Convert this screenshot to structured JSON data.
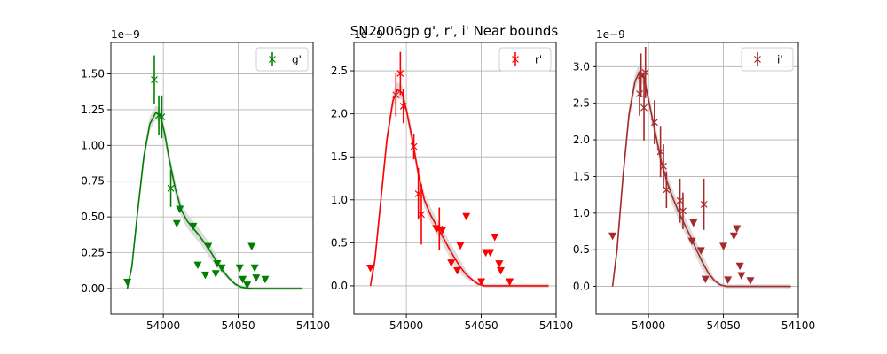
{
  "figure": {
    "title": "SN2006gp  g', r', i' Near bounds"
  },
  "chart_data": [
    {
      "type": "scatter",
      "title": "",
      "xlabel": "",
      "ylabel": "",
      "scale_label": "1e−9",
      "xlim": [
        53965,
        54100
      ],
      "ylim": [
        -0.18,
        1.72
      ],
      "xticks": [
        54000,
        54050,
        54100
      ],
      "yticks": [
        0.0,
        0.25,
        0.5,
        0.75,
        1.0,
        1.25,
        1.5
      ],
      "ytick_labels": [
        "0.00",
        "0.25",
        "0.50",
        "0.75",
        "1.00",
        "1.25",
        "1.50"
      ],
      "grid": true,
      "legend": {
        "position": "top-right",
        "label": "g'"
      },
      "color": "#008000",
      "detections": [
        {
          "x": 53994,
          "y": 1.46,
          "err": 0.17
        },
        {
          "x": 53997,
          "y": 1.21,
          "err": 0.14
        },
        {
          "x": 53999,
          "y": 1.2,
          "err": 0.15
        },
        {
          "x": 54005,
          "y": 0.7,
          "err": 0.13
        }
      ],
      "upper_limits": [
        {
          "x": 53976,
          "y": 0.04
        },
        {
          "x": 54009,
          "y": 0.45
        },
        {
          "x": 54011,
          "y": 0.55
        },
        {
          "x": 54020,
          "y": 0.43
        },
        {
          "x": 54023,
          "y": 0.16
        },
        {
          "x": 54028,
          "y": 0.09
        },
        {
          "x": 54030,
          "y": 0.29
        },
        {
          "x": 54035,
          "y": 0.1
        },
        {
          "x": 54036,
          "y": 0.17
        },
        {
          "x": 54039,
          "y": 0.14
        },
        {
          "x": 54051,
          "y": 0.14
        },
        {
          "x": 54053,
          "y": 0.06
        },
        {
          "x": 54056,
          "y": 0.02
        },
        {
          "x": 54059,
          "y": 0.29
        },
        {
          "x": 54061,
          "y": 0.14
        },
        {
          "x": 54062,
          "y": 0.07
        },
        {
          "x": 54068,
          "y": 0.06
        }
      ],
      "model": [
        [
          53976,
          0
        ],
        [
          53979,
          0.15
        ],
        [
          53983,
          0.55
        ],
        [
          53987,
          0.92
        ],
        [
          53991,
          1.15
        ],
        [
          53995,
          1.23
        ],
        [
          53998,
          1.21
        ],
        [
          54001,
          1.08
        ],
        [
          54004,
          0.9
        ],
        [
          54008,
          0.7
        ],
        [
          54012,
          0.55
        ],
        [
          54016,
          0.47
        ],
        [
          54020,
          0.42
        ],
        [
          54024,
          0.37
        ],
        [
          54028,
          0.31
        ],
        [
          54032,
          0.25
        ],
        [
          54036,
          0.18
        ],
        [
          54040,
          0.12
        ],
        [
          54044,
          0.07
        ],
        [
          54048,
          0.03
        ],
        [
          54052,
          0.01
        ],
        [
          54056,
          0.002
        ],
        [
          54060,
          0
        ],
        [
          54093,
          0
        ]
      ],
      "model_band": 0.05
    },
    {
      "type": "scatter",
      "title": "",
      "xlabel": "",
      "ylabel": "",
      "scale_label": "1e−9",
      "xlim": [
        53965,
        54100
      ],
      "ylim": [
        -0.33,
        2.83
      ],
      "xticks": [
        54000,
        54050,
        54100
      ],
      "yticks": [
        0.0,
        0.5,
        1.0,
        1.5,
        2.0,
        2.5
      ],
      "ytick_labels": [
        "0.0",
        "0.5",
        "1.0",
        "1.5",
        "2.0",
        "2.5"
      ],
      "grid": true,
      "legend": {
        "position": "top-right",
        "label": "r'"
      },
      "color": "#ff0000",
      "detections": [
        {
          "x": 53993,
          "y": 2.22,
          "err": 0.25
        },
        {
          "x": 53996,
          "y": 2.47,
          "err": 0.25
        },
        {
          "x": 53998,
          "y": 2.09,
          "err": 0.2
        },
        {
          "x": 54005,
          "y": 1.62,
          "err": 0.15
        },
        {
          "x": 54008,
          "y": 1.07,
          "err": 0.3
        },
        {
          "x": 54010,
          "y": 0.83,
          "err": 0.35
        },
        {
          "x": 54022,
          "y": 0.66,
          "err": 0.25
        }
      ],
      "upper_limits": [
        {
          "x": 53976,
          "y": 0.2
        },
        {
          "x": 54020,
          "y": 0.66
        },
        {
          "x": 54024,
          "y": 0.64
        },
        {
          "x": 54030,
          "y": 0.26
        },
        {
          "x": 54034,
          "y": 0.17
        },
        {
          "x": 54036,
          "y": 0.46
        },
        {
          "x": 54040,
          "y": 0.8
        },
        {
          "x": 54050,
          "y": 0.04
        },
        {
          "x": 54053,
          "y": 0.38
        },
        {
          "x": 54056,
          "y": 0.38
        },
        {
          "x": 54059,
          "y": 0.56
        },
        {
          "x": 54062,
          "y": 0.25
        },
        {
          "x": 54063,
          "y": 0.17
        },
        {
          "x": 54069,
          "y": 0.04
        }
      ],
      "model": [
        [
          53976,
          0
        ],
        [
          53979,
          0.3
        ],
        [
          53983,
          1.0
        ],
        [
          53987,
          1.7
        ],
        [
          53991,
          2.15
        ],
        [
          53994,
          2.28
        ],
        [
          53997,
          2.25
        ],
        [
          54000,
          2.05
        ],
        [
          54004,
          1.7
        ],
        [
          54008,
          1.3
        ],
        [
          54012,
          1.0
        ],
        [
          54016,
          0.83
        ],
        [
          54020,
          0.7
        ],
        [
          54024,
          0.58
        ],
        [
          54028,
          0.45
        ],
        [
          54032,
          0.33
        ],
        [
          54036,
          0.22
        ],
        [
          54040,
          0.13
        ],
        [
          54044,
          0.07
        ],
        [
          54048,
          0.02
        ],
        [
          54052,
          0
        ],
        [
          54095,
          0
        ]
      ],
      "model_band": 0.09
    },
    {
      "type": "scatter",
      "title": "",
      "xlabel": "",
      "ylabel": "",
      "scale_label": "1e−9",
      "xlim": [
        53965,
        54100
      ],
      "ylim": [
        -0.38,
        3.33
      ],
      "xticks": [
        54000,
        54050,
        54100
      ],
      "yticks": [
        0.0,
        0.5,
        1.0,
        1.5,
        2.0,
        2.5,
        3.0
      ],
      "ytick_labels": [
        "0.0",
        "0.5",
        "1.0",
        "1.5",
        "2.0",
        "2.5",
        "3.0"
      ],
      "grid": true,
      "legend": {
        "position": "top-right",
        "label": "i'"
      },
      "color": "#a52a2a",
      "detections": [
        {
          "x": 53994,
          "y": 2.63,
          "err": 0.3
        },
        {
          "x": 53995,
          "y": 2.88,
          "err": 0.3
        },
        {
          "x": 53997,
          "y": 2.44,
          "err": 0.45
        },
        {
          "x": 53998,
          "y": 2.92,
          "err": 0.35
        },
        {
          "x": 54004,
          "y": 2.24,
          "err": 0.3
        },
        {
          "x": 54008,
          "y": 1.84,
          "err": 0.35
        },
        {
          "x": 54010,
          "y": 1.64,
          "err": 0.3
        },
        {
          "x": 54012,
          "y": 1.32,
          "err": 0.25
        },
        {
          "x": 54021,
          "y": 1.17,
          "err": 0.3
        },
        {
          "x": 54023,
          "y": 1.03,
          "err": 0.25
        },
        {
          "x": 54037,
          "y": 1.12,
          "err": 0.35
        }
      ],
      "upper_limits": [
        {
          "x": 53976,
          "y": 0.68
        },
        {
          "x": 54029,
          "y": 0.61
        },
        {
          "x": 54030,
          "y": 0.86
        },
        {
          "x": 54035,
          "y": 0.48
        },
        {
          "x": 54038,
          "y": 0.09
        },
        {
          "x": 54050,
          "y": 0.54
        },
        {
          "x": 54053,
          "y": 0.08
        },
        {
          "x": 54057,
          "y": 0.68
        },
        {
          "x": 54059,
          "y": 0.78
        },
        {
          "x": 54061,
          "y": 0.27
        },
        {
          "x": 54062,
          "y": 0.14
        },
        {
          "x": 54068,
          "y": 0.07
        }
      ],
      "model": [
        [
          53976,
          0
        ],
        [
          53979,
          0.5
        ],
        [
          53983,
          1.5
        ],
        [
          53987,
          2.35
        ],
        [
          53991,
          2.8
        ],
        [
          53994,
          2.93
        ],
        [
          53997,
          2.85
        ],
        [
          54000,
          2.55
        ],
        [
          54004,
          2.15
        ],
        [
          54008,
          1.75
        ],
        [
          54012,
          1.45
        ],
        [
          54016,
          1.22
        ],
        [
          54020,
          1.02
        ],
        [
          54024,
          0.85
        ],
        [
          54028,
          0.68
        ],
        [
          54032,
          0.5
        ],
        [
          54036,
          0.33
        ],
        [
          54040,
          0.18
        ],
        [
          54044,
          0.08
        ],
        [
          54048,
          0.02
        ],
        [
          54052,
          0
        ],
        [
          54095,
          0
        ]
      ],
      "model_band": 0.11
    }
  ]
}
